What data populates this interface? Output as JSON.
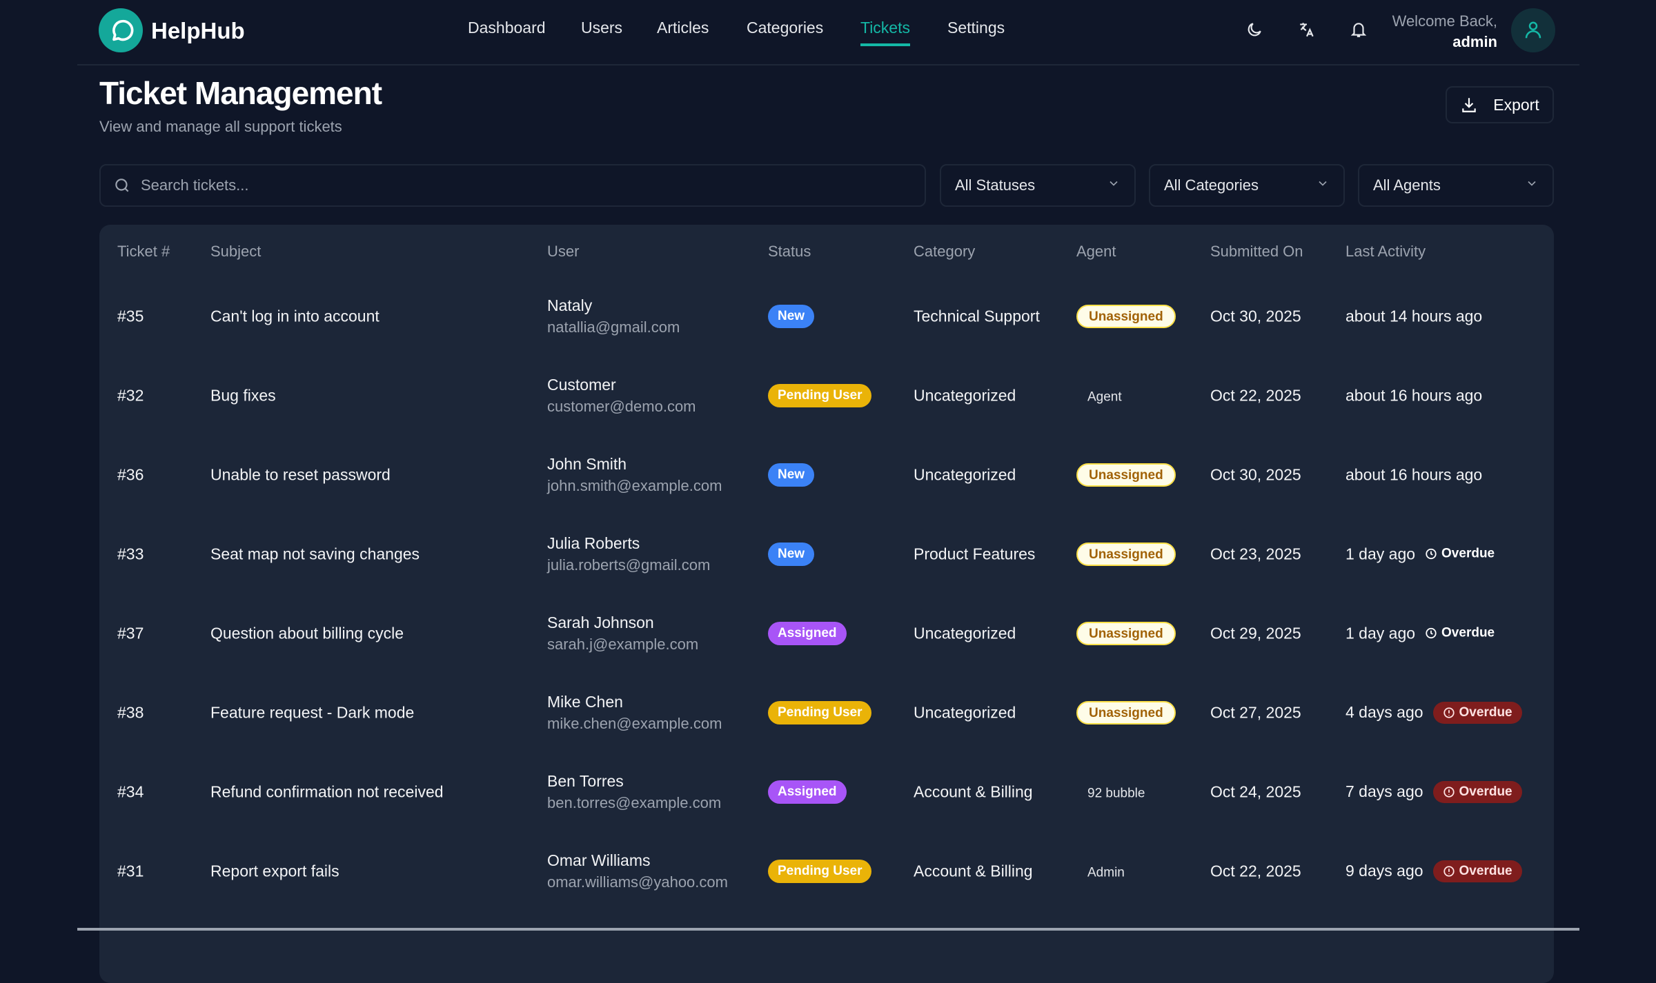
{
  "brand": {
    "name": "HelpHub",
    "color": "#14a89a"
  },
  "nav": [
    {
      "label": "Dashboard"
    },
    {
      "label": "Users"
    },
    {
      "label": "Articles"
    },
    {
      "label": "Categories"
    },
    {
      "label": "Tickets",
      "active": true
    },
    {
      "label": "Settings"
    }
  ],
  "header_icons": [
    "moon-icon",
    "translate-icon",
    "bell-icon"
  ],
  "user": {
    "welcome": "Welcome Back,",
    "name": "admin"
  },
  "page": {
    "title": "Ticket Management",
    "subtitle": "View and manage all support tickets",
    "export_label": "Export"
  },
  "filters": {
    "search_placeholder": "Search tickets...",
    "status": "All Statuses",
    "category": "All Categories",
    "agent": "All Agents"
  },
  "table": {
    "columns": [
      "Ticket #",
      "Subject",
      "User",
      "Status",
      "Category",
      "Agent",
      "Submitted On",
      "Last Activity"
    ],
    "rows": [
      {
        "id": "#35",
        "subject": "Can't log in into account",
        "user": "Nataly",
        "email": "natallia@gmail.com",
        "status": "New",
        "category": "Technical Support",
        "agent": "Unassigned",
        "submitted": "Oct 30, 2025",
        "activity": "about 14 hours ago",
        "overdue": ""
      },
      {
        "id": "#32",
        "subject": "Bug fixes",
        "user": "Customer",
        "email": "customer@demo.com",
        "status": "Pending User",
        "category": "Uncategorized",
        "agent": "Agent",
        "submitted": "Oct 22, 2025",
        "activity": "about 16 hours ago",
        "overdue": ""
      },
      {
        "id": "#36",
        "subject": "Unable to reset password",
        "user": "John Smith",
        "email": "john.smith@example.com",
        "status": "New",
        "category": "Uncategorized",
        "agent": "Unassigned",
        "submitted": "Oct 30, 2025",
        "activity": "about 16 hours ago",
        "overdue": ""
      },
      {
        "id": "#33",
        "subject": "Seat map not saving changes",
        "user": "Julia Roberts",
        "email": "julia.roberts@gmail.com",
        "status": "New",
        "category": "Product Features",
        "agent": "Unassigned",
        "submitted": "Oct 23, 2025",
        "activity": "1 day ago",
        "overdue": "Overdue",
        "overdue_level": "warning"
      },
      {
        "id": "#37",
        "subject": "Question about billing cycle",
        "user": "Sarah Johnson",
        "email": "sarah.j@example.com",
        "status": "Assigned",
        "category": "Uncategorized",
        "agent": "Unassigned",
        "submitted": "Oct 29, 2025",
        "activity": "1 day ago",
        "overdue": "Overdue",
        "overdue_level": "warning"
      },
      {
        "id": "#38",
        "subject": "Feature request - Dark mode",
        "user": "Mike Chen",
        "email": "mike.chen@example.com",
        "status": "Pending User",
        "category": "Uncategorized",
        "agent": "Unassigned",
        "submitted": "Oct 27, 2025",
        "activity": "4 days ago",
        "overdue": "Overdue",
        "overdue_level": "critical"
      },
      {
        "id": "#34",
        "subject": "Refund confirmation not received",
        "user": "Ben Torres",
        "email": "ben.torres@example.com",
        "status": "Assigned",
        "category": "Account & Billing",
        "agent": "92 bubble",
        "submitted": "Oct 24, 2025",
        "activity": "7 days ago",
        "overdue": "Overdue",
        "overdue_level": "critical"
      },
      {
        "id": "#31",
        "subject": "Report export fails",
        "user": "Omar Williams",
        "email": "omar.williams@yahoo.com",
        "status": "Pending User",
        "category": "Account & Billing",
        "agent": "Admin",
        "submitted": "Oct 22, 2025",
        "activity": "9 days ago",
        "overdue": "Overdue",
        "overdue_level": "critical"
      }
    ]
  },
  "status_colors": {
    "New": "#3b82f6",
    "Pending User": "#eab308",
    "Assigned": "#a855f7"
  }
}
